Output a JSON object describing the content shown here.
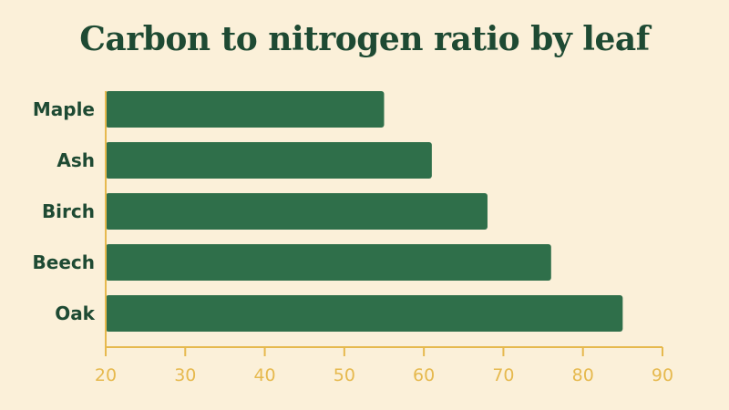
{
  "colors": {
    "background": "#fbf0d9",
    "bar": "#2f6f4a",
    "title": "#1e4a33",
    "axis": "#e6b94e"
  },
  "chart_data": {
    "type": "bar",
    "orientation": "horizontal",
    "title": "Carbon to nitrogen ratio by leaf",
    "categories": [
      "Maple",
      "Ash",
      "Birch",
      "Beech",
      "Oak"
    ],
    "values": [
      55,
      61,
      68,
      76,
      85
    ],
    "xlabel": "",
    "ylabel": "",
    "xlim": [
      20,
      90
    ],
    "xticks": [
      20,
      30,
      40,
      50,
      60,
      70,
      80,
      90
    ],
    "grid": false,
    "legend": "none"
  }
}
